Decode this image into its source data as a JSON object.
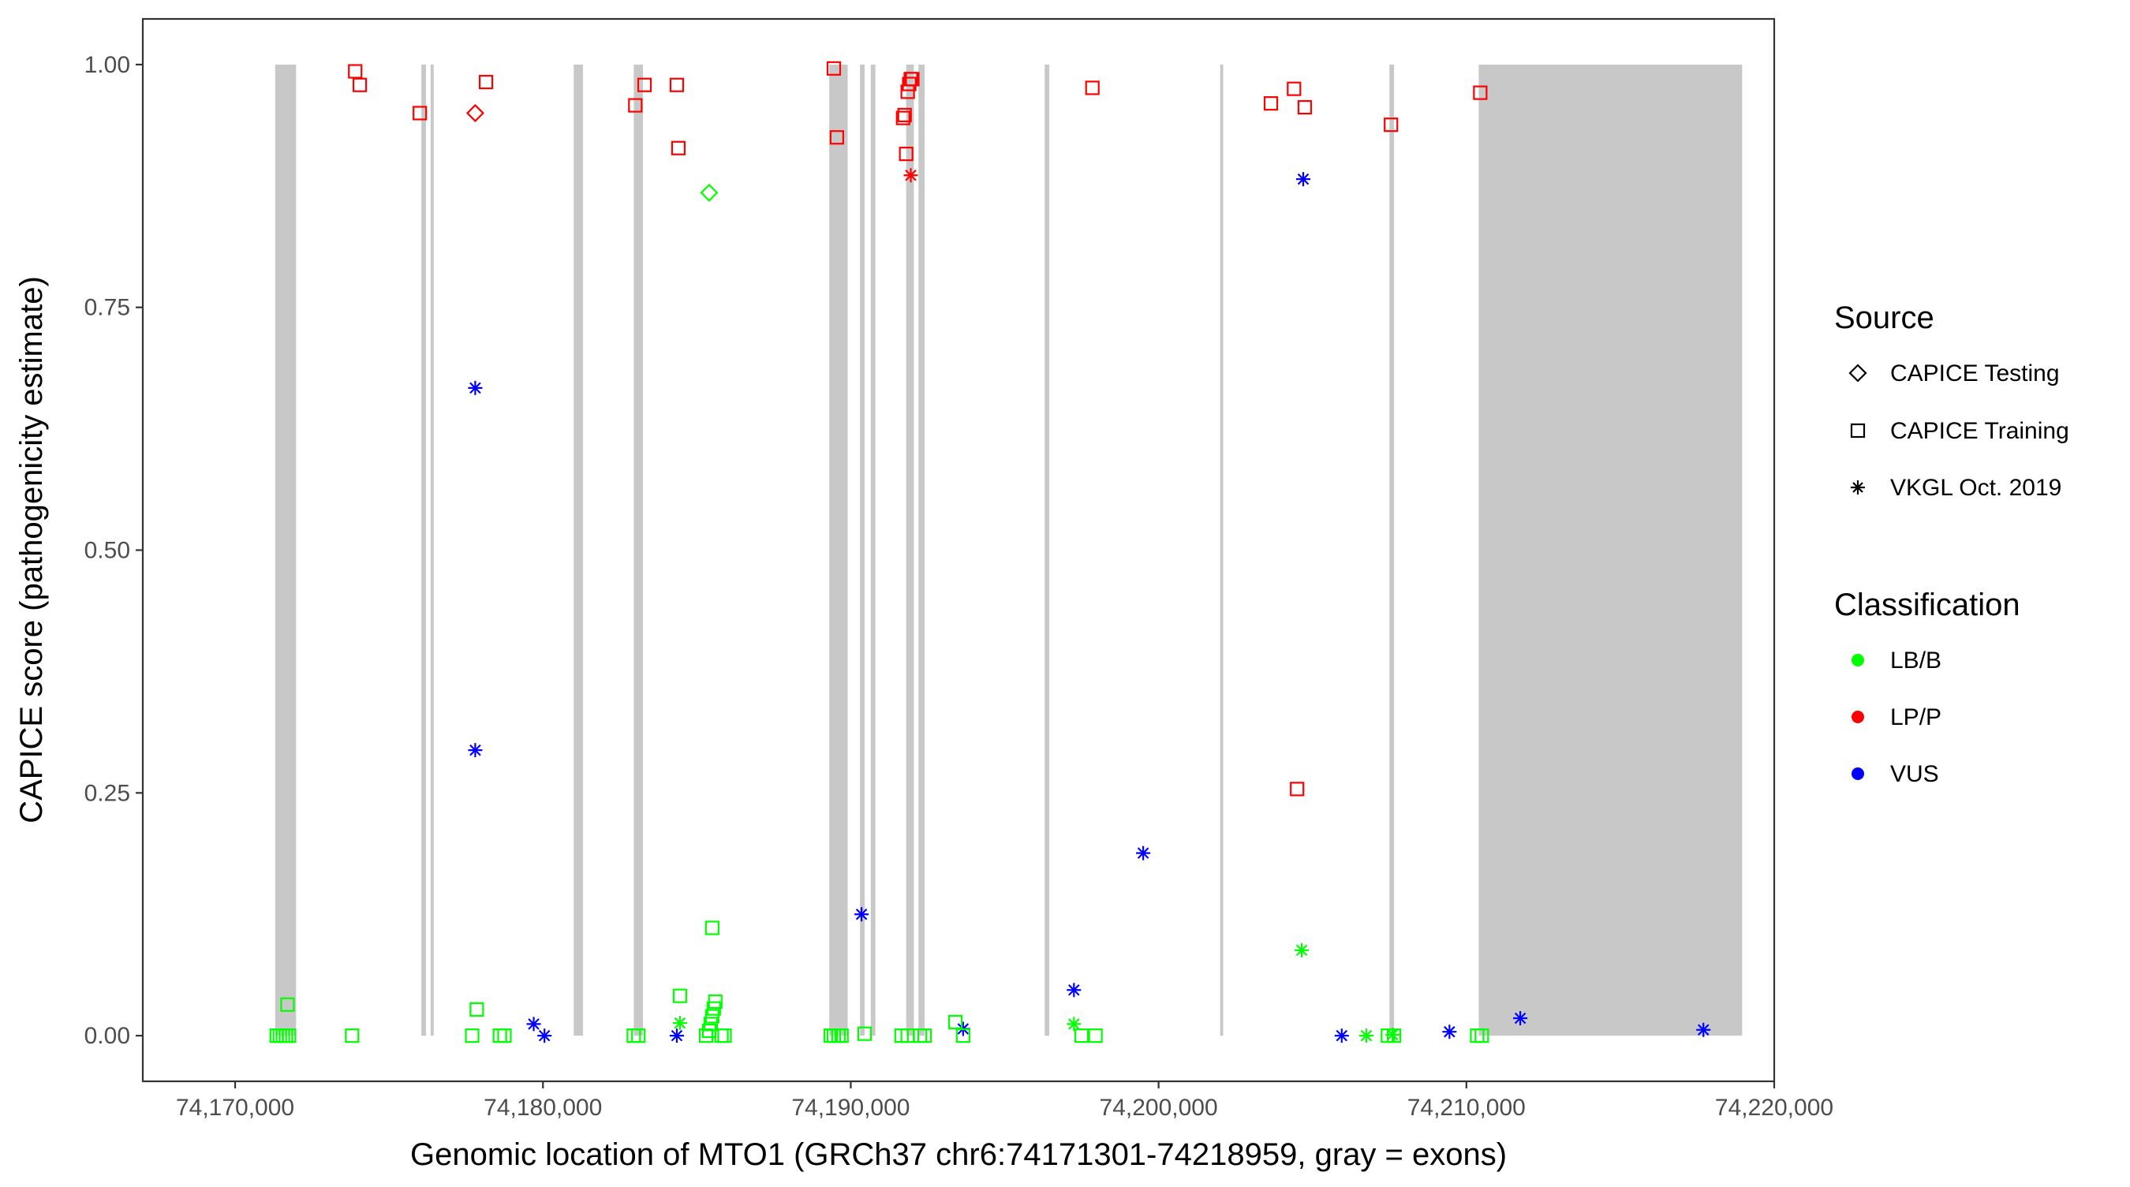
{
  "chart_data": {
    "type": "scatter",
    "xlabel": "Genomic location of MTO1 (GRCh37 chr6:74171301-74218959, gray = exons)",
    "ylabel": "CAPICE score (pathogenicity estimate)",
    "xlim": [
      74167000,
      74220000
    ],
    "ylim": [
      -0.047,
      1.047
    ],
    "x_ticks": [
      74170000,
      74180000,
      74190000,
      74200000,
      74210000,
      74220000
    ],
    "x_tick_labels": [
      "74,170,000",
      "74,180,000",
      "74,190,000",
      "74,200,000",
      "74,210,000",
      "74,220,000"
    ],
    "y_ticks": [
      0,
      0.25,
      0.5,
      0.75,
      1.0
    ],
    "y_tick_labels": [
      "0.00",
      "0.25",
      "0.50",
      "0.75",
      "1.00"
    ],
    "grid": false,
    "legend_position": "right",
    "exon_color": "#c8c8c8",
    "exons": [
      [
        74171301,
        74171980
      ],
      [
        74176050,
        74176200
      ],
      [
        74176350,
        74176450
      ],
      [
        74181000,
        74181300
      ],
      [
        74182950,
        74183250
      ],
      [
        74189300,
        74189900
      ],
      [
        74190300,
        74190450
      ],
      [
        74190650,
        74190800
      ],
      [
        74191800,
        74192050
      ],
      [
        74192200,
        74192400
      ],
      [
        74196300,
        74196450
      ],
      [
        74202000,
        74202100
      ],
      [
        74207500,
        74207650
      ],
      [
        74210400,
        74218959
      ]
    ],
    "legends": {
      "source": {
        "title": "Source",
        "items": [
          {
            "label": "CAPICE Testing",
            "shape": "diamond"
          },
          {
            "label": "CAPICE Training",
            "shape": "square"
          },
          {
            "label": "VKGL Oct. 2019",
            "shape": "asterisk"
          }
        ]
      },
      "classification": {
        "title": "Classification",
        "items": [
          {
            "label": "LB/B",
            "color": "#00ff00"
          },
          {
            "label": "LP/P",
            "color": "#ff0000"
          },
          {
            "label": "VUS",
            "color": "#0000ff"
          }
        ]
      }
    },
    "series": [
      {
        "source": "CAPICE Training",
        "classification": "LP/P",
        "points": [
          [
            74173900,
            0.993
          ],
          [
            74174050,
            0.979
          ],
          [
            74176000,
            0.95
          ],
          [
            74178150,
            0.982
          ],
          [
            74183000,
            0.958
          ],
          [
            74183300,
            0.979
          ],
          [
            74184350,
            0.979
          ],
          [
            74184400,
            0.914
          ],
          [
            74189450,
            0.996
          ],
          [
            74189550,
            0.925
          ],
          [
            74191700,
            0.945
          ],
          [
            74191750,
            0.948
          ],
          [
            74191800,
            0.908
          ],
          [
            74191850,
            0.972
          ],
          [
            74191900,
            0.98
          ],
          [
            74191950,
            0.985
          ],
          [
            74192000,
            0.985
          ],
          [
            74197850,
            0.976
          ],
          [
            74203650,
            0.96
          ],
          [
            74204400,
            0.975
          ],
          [
            74204750,
            0.956
          ],
          [
            74207550,
            0.938
          ],
          [
            74210450,
            0.971
          ],
          [
            74204500,
            0.254
          ]
        ]
      },
      {
        "source": "CAPICE Testing",
        "classification": "LP/P",
        "points": [
          [
            74177800,
            0.95
          ]
        ]
      },
      {
        "source": "CAPICE Testing",
        "classification": "LB/B",
        "points": [
          [
            74185400,
            0.868
          ]
        ]
      },
      {
        "source": "VKGL Oct. 2019",
        "classification": "LP/P",
        "points": [
          [
            74191950,
            0.886
          ]
        ]
      },
      {
        "source": "VKGL Oct. 2019",
        "classification": "VUS",
        "points": [
          [
            74177800,
            0.667
          ],
          [
            74177800,
            0.294
          ],
          [
            74179700,
            0.012
          ],
          [
            74180050,
            0.0
          ],
          [
            74184350,
            0.0
          ],
          [
            74190350,
            0.125
          ],
          [
            74193650,
            0.007
          ],
          [
            74197250,
            0.047
          ],
          [
            74199500,
            0.188
          ],
          [
            74204700,
            0.882
          ],
          [
            74205950,
            0.0
          ],
          [
            74209450,
            0.004
          ],
          [
            74211750,
            0.018
          ],
          [
            74217700,
            0.006
          ]
        ]
      },
      {
        "source": "VKGL Oct. 2019",
        "classification": "LB/B",
        "points": [
          [
            74184450,
            0.013
          ],
          [
            74197250,
            0.012
          ],
          [
            74204650,
            0.088
          ],
          [
            74206750,
            0.0
          ],
          [
            74207600,
            0.001
          ]
        ]
      },
      {
        "source": "CAPICE Training",
        "classification": "LB/B",
        "points": [
          [
            74171350,
            0.0
          ],
          [
            74171450,
            0.0
          ],
          [
            74171550,
            0.0
          ],
          [
            74171650,
            0.0
          ],
          [
            74171700,
            0.032
          ],
          [
            74171750,
            0.0
          ],
          [
            74173800,
            0.0
          ],
          [
            74177700,
            0.0
          ],
          [
            74177850,
            0.027
          ],
          [
            74178600,
            0.0
          ],
          [
            74178750,
            0.0
          ],
          [
            74182950,
            0.0
          ],
          [
            74183100,
            0.0
          ],
          [
            74184450,
            0.041
          ],
          [
            74185300,
            0.0
          ],
          [
            74185400,
            0.005
          ],
          [
            74185450,
            0.012
          ],
          [
            74185500,
            0.02
          ],
          [
            74185550,
            0.028
          ],
          [
            74185600,
            0.035
          ],
          [
            74185500,
            0.111
          ],
          [
            74185800,
            0.0
          ],
          [
            74185900,
            0.0
          ],
          [
            74189350,
            0.0
          ],
          [
            74189450,
            0.0
          ],
          [
            74189600,
            0.0
          ],
          [
            74189700,
            0.0
          ],
          [
            74190450,
            0.002
          ],
          [
            74191650,
            0.0
          ],
          [
            74191850,
            0.0
          ],
          [
            74192250,
            0.0
          ],
          [
            74192400,
            0.0
          ],
          [
            74193400,
            0.014
          ],
          [
            74193650,
            0.0
          ],
          [
            74197500,
            0.0
          ],
          [
            74197950,
            0.0
          ],
          [
            74207450,
            0.0
          ],
          [
            74207650,
            0.0
          ],
          [
            74210350,
            0.0
          ],
          [
            74210500,
            0.0
          ]
        ]
      }
    ]
  }
}
